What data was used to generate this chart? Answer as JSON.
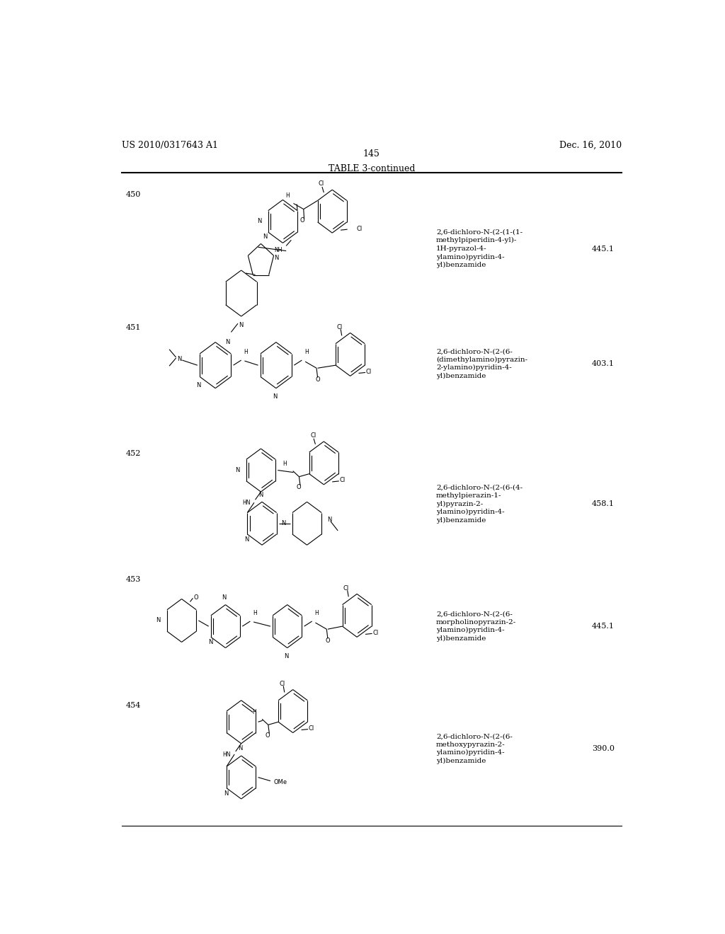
{
  "background_color": "#ffffff",
  "header_left": "US 2010/0317643 A1",
  "header_right": "Dec. 16, 2010",
  "page_number": "145",
  "table_title": "TABLE 3-continued",
  "row_ids": [
    "450",
    "451",
    "452",
    "453",
    "454"
  ],
  "row_names": [
    "2,6-dichloro-N-(2-(1-(1-\nmethylpiperidin-4-yl)-\n1H-pyrazol-4-\nylamino)pyridin-4-\nyl)benzamide",
    "2,6-dichloro-N-(2-(6-\n(dimethylamino)pyrazin-\n2-ylamino)pyridin-4-\nyl)benzamide",
    "2,6-dichloro-N-(2-(6-(4-\nmethylpierazin-1-\nyl)pyrazin-2-\nylamino)pyridin-4-\nyl)benzamide",
    "2,6-dichloro-N-(2-(6-\nmorpholinopyrazin-2-\nylamino)pyridin-4-\nyl)benzamide",
    "2,6-dichloro-N-(2-(6-\nmethoxypyrazin-2-\nylamino)pyridin-4-\nyl)benzamide"
  ],
  "row_values": [
    "445.1",
    "403.1",
    "458.1",
    "445.1",
    "390.0"
  ],
  "row_tops": [
    0.895,
    0.71,
    0.535,
    0.36,
    0.185
  ],
  "row_mids": [
    0.81,
    0.65,
    0.455,
    0.285,
    0.115
  ],
  "font_size_header": 9,
  "font_size_row_id": 8,
  "font_size_name": 7.5,
  "font_size_value": 8,
  "font_size_title": 9,
  "font_size_page": 9
}
